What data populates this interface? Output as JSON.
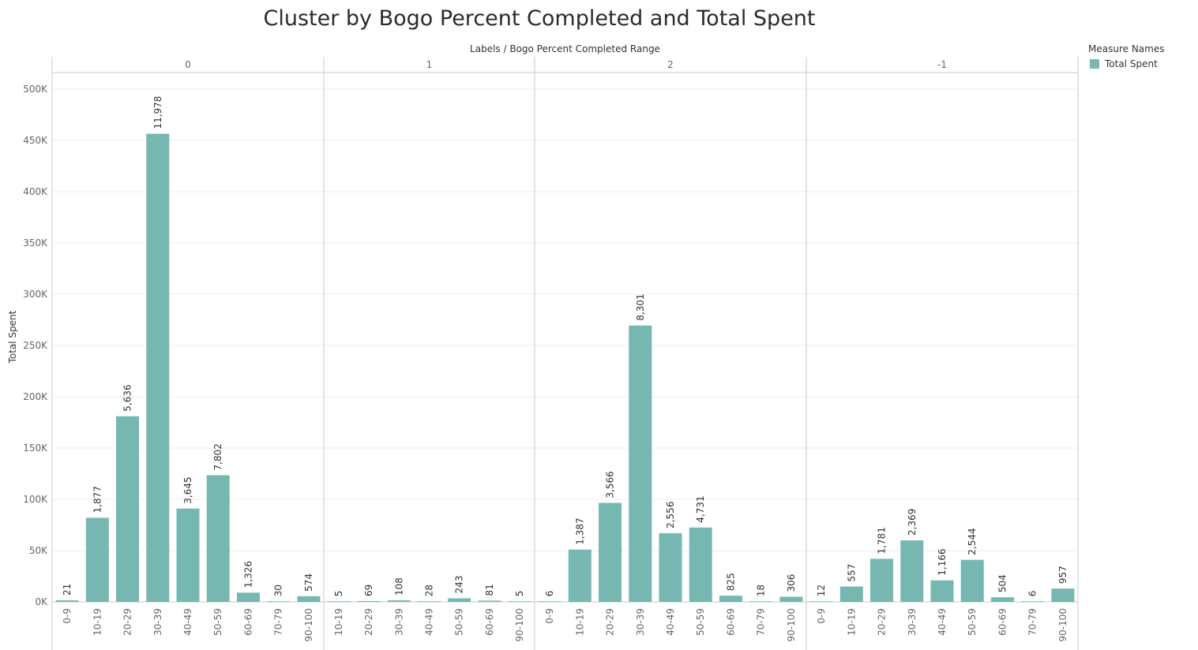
{
  "chart_data": {
    "type": "bar",
    "title": "Cluster by Bogo Percent Completed and Total Spent",
    "column_header": "Labels  /  Bogo Percent Completed Range",
    "ylabel": "Total Spent",
    "ylim": [
      0,
      520000
    ],
    "yticks": [
      0,
      50000,
      100000,
      150000,
      200000,
      250000,
      300000,
      350000,
      400000,
      450000,
      500000
    ],
    "ytick_labels": [
      "0K",
      "50K",
      "100K",
      "150K",
      "200K",
      "250K",
      "300K",
      "350K",
      "400K",
      "450K",
      "500K"
    ],
    "grid": true,
    "legend": {
      "title": "Measure Names",
      "position": "top-right",
      "items": [
        {
          "name": "Total Spent",
          "color": "#76b7b2"
        }
      ]
    },
    "bar_color": "#76b7b2",
    "panels": [
      {
        "label": "0",
        "categories": [
          "0-9",
          "10-19",
          "20-29",
          "30-39",
          "40-49",
          "50-59",
          "60-69",
          "70-79",
          "90-100"
        ],
        "values": [
          1500,
          82000,
          181000,
          456500,
          91000,
          123500,
          9000,
          300,
          5500
        ],
        "data_labels": [
          "21",
          "1,877",
          "5,636",
          "11,978",
          "3,645",
          "7,802",
          "1,326",
          "30",
          "574"
        ]
      },
      {
        "label": "1",
        "categories": [
          "10-19",
          "20-29",
          "30-39",
          "40-49",
          "50-59",
          "60-69",
          "90-100"
        ],
        "values": [
          50,
          800,
          1500,
          400,
          3500,
          1200,
          100
        ],
        "data_labels": [
          "5",
          "69",
          "108",
          "28",
          "243",
          "81",
          "5"
        ]
      },
      {
        "label": "2",
        "categories": [
          "0-9",
          "10-19",
          "20-29",
          "30-39",
          "40-49",
          "50-59",
          "60-69",
          "70-79",
          "90-100"
        ],
        "values": [
          100,
          51000,
          96500,
          269500,
          67000,
          72500,
          6000,
          250,
          5000
        ],
        "data_labels": [
          "6",
          "1,387",
          "3,566",
          "8,301",
          "2,556",
          "4,731",
          "825",
          "18",
          "306"
        ]
      },
      {
        "label": "-1",
        "categories": [
          "0-9",
          "10-19",
          "20-29",
          "30-39",
          "40-49",
          "50-59",
          "60-69",
          "70-79",
          "90-100"
        ],
        "values": [
          150,
          15000,
          42000,
          60000,
          21000,
          41000,
          4500,
          100,
          13000
        ],
        "data_labels": [
          "12",
          "557",
          "1,781",
          "2,369",
          "1,166",
          "2,544",
          "504",
          "6",
          "957"
        ]
      }
    ]
  }
}
